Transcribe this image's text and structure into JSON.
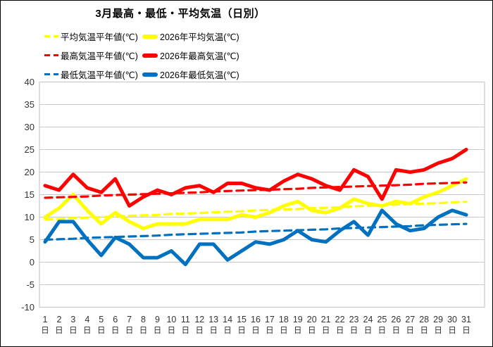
{
  "title": "3月最高・最低・平均気温（日別）",
  "legend": [
    {
      "label": "平均気温平年値(℃)",
      "style": "dashed",
      "color": "#ffff00"
    },
    {
      "label": "2026年平均気温(℃)",
      "style": "solid",
      "color": "#ffff00"
    },
    {
      "label": "最高気温平年値(℃)",
      "style": "dashed",
      "color": "#ff0000"
    },
    {
      "label": "2026年最高気温(℃)",
      "style": "solid",
      "color": "#ff0000"
    },
    {
      "label": "最低気温平年値(℃)",
      "style": "dashed",
      "color": "#0070c0"
    },
    {
      "label": "2026年最低気温(℃)",
      "style": "solid",
      "color": "#0070c0"
    }
  ],
  "chart_data": {
    "type": "line",
    "title": "3月最高・最低・平均気温（日別）",
    "x_days": [
      1,
      2,
      3,
      4,
      5,
      6,
      7,
      8,
      9,
      10,
      11,
      12,
      13,
      14,
      15,
      16,
      17,
      18,
      19,
      20,
      21,
      22,
      23,
      24,
      25,
      26,
      27,
      28,
      29,
      30,
      31
    ],
    "x_suffix": "日",
    "ylim": [
      -10,
      40
    ],
    "yticks": [
      40,
      35,
      30,
      25,
      20,
      15,
      10,
      5,
      0,
      -5,
      -10
    ],
    "grid": true,
    "legend_position": "top-left",
    "colors": {
      "grid": "#c8c8c8",
      "axis_text": "#333333"
    },
    "series": [
      {
        "name": "平均気温平年値(℃)",
        "color": "#ffff00",
        "dashed": true,
        "values": [
          9.5,
          9.6,
          9.8,
          9.9,
          10.0,
          10.2,
          10.3,
          10.4,
          10.5,
          10.7,
          10.8,
          10.9,
          11.1,
          11.2,
          11.3,
          11.5,
          11.6,
          11.7,
          11.8,
          12.0,
          12.1,
          12.2,
          12.4,
          12.5,
          12.6,
          12.8,
          12.9,
          13.0,
          13.1,
          13.3,
          13.4
        ]
      },
      {
        "name": "2026年平均気温(℃)",
        "color": "#ffff00",
        "dashed": false,
        "values": [
          10,
          12,
          15,
          11.5,
          8.5,
          11,
          9,
          7.5,
          8.5,
          8.5,
          8.5,
          9.5,
          9.5,
          9.5,
          10.5,
          10,
          11,
          12.5,
          13.5,
          11.5,
          11,
          12,
          14,
          13,
          12.5,
          13.5,
          13,
          14.5,
          15.5,
          17,
          18.5
        ]
      },
      {
        "name": "最高気温平年値(℃)",
        "color": "#ff0000",
        "dashed": true,
        "values": [
          14.3,
          14.4,
          14.5,
          14.6,
          14.8,
          14.9,
          15.0,
          15.1,
          15.2,
          15.3,
          15.4,
          15.5,
          15.7,
          15.8,
          15.9,
          16.0,
          16.1,
          16.2,
          16.3,
          16.5,
          16.6,
          16.7,
          16.8,
          16.9,
          17.0,
          17.1,
          17.2,
          17.4,
          17.5,
          17.6,
          17.7
        ]
      },
      {
        "name": "2026年最高気温(℃)",
        "color": "#ff0000",
        "dashed": false,
        "values": [
          17,
          16,
          19.5,
          16.5,
          15.5,
          18.5,
          12.5,
          14.5,
          16,
          15,
          16.5,
          17,
          15.5,
          17.5,
          17.5,
          16.5,
          16,
          18,
          19.5,
          18.5,
          17,
          16,
          20.5,
          19,
          14,
          20.5,
          20,
          20.5,
          22,
          23,
          25
        ]
      },
      {
        "name": "最低気温平年値(℃)",
        "color": "#0070c0",
        "dashed": true,
        "values": [
          5.0,
          5.1,
          5.2,
          5.4,
          5.5,
          5.6,
          5.7,
          5.8,
          5.9,
          6.1,
          6.2,
          6.3,
          6.4,
          6.5,
          6.6,
          6.8,
          6.9,
          7.0,
          7.1,
          7.2,
          7.3,
          7.5,
          7.6,
          7.7,
          7.8,
          7.9,
          8.0,
          8.2,
          8.3,
          8.4,
          8.5
        ]
      },
      {
        "name": "2026年最低気温(℃)",
        "color": "#0070c0",
        "dashed": false,
        "values": [
          4.5,
          9,
          9,
          5,
          1.5,
          5.5,
          4,
          1,
          1,
          2.5,
          -0.5,
          4,
          4,
          0.5,
          2.5,
          4.5,
          4,
          5,
          7,
          5,
          4.5,
          7,
          9,
          6,
          11.5,
          8.5,
          7,
          7.5,
          10,
          11.5,
          10.5
        ]
      }
    ]
  }
}
